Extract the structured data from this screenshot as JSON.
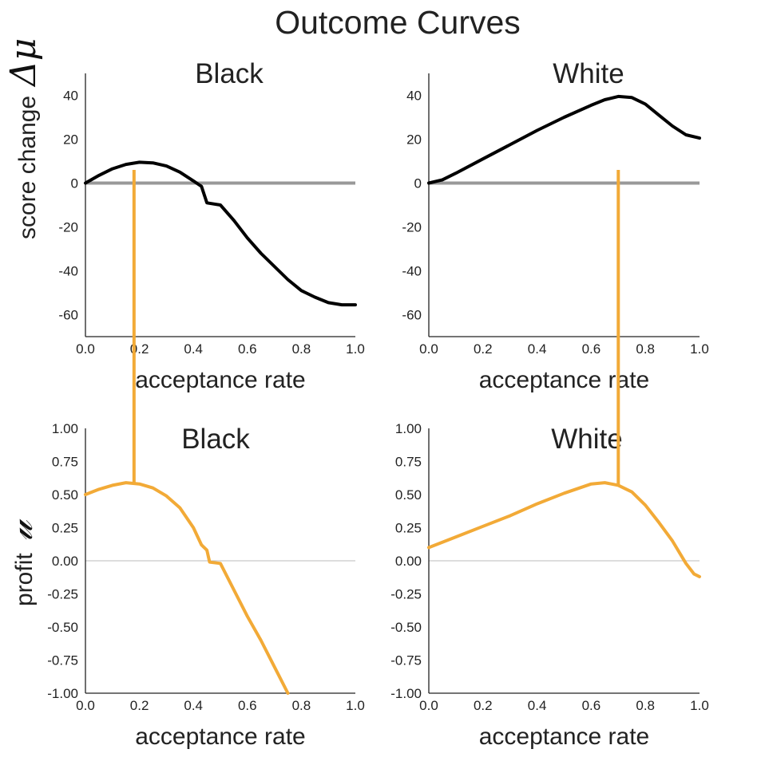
{
  "title": "Outcome Curves",
  "colors": {
    "outcome": "#000000",
    "profit": "#f2aa37",
    "zero_thick": "#999999",
    "zero_thin": "#bbbbbb",
    "axis": "#222222"
  },
  "row_labels": {
    "top": {
      "text": "score change",
      "symbol": "Δμ"
    },
    "bottom": {
      "text": "profit",
      "symbol": "𝓊"
    }
  },
  "chart_data": [
    {
      "id": "top-black",
      "type": "line",
      "title": "Black",
      "xlabel": "acceptance rate",
      "ylabel": "score change Δμ",
      "xlim": [
        0,
        1
      ],
      "ylim": [
        -70,
        50
      ],
      "xticks": [
        "0.0",
        "0.2",
        "0.4",
        "0.6",
        "0.8",
        "1.0"
      ],
      "yticks": [
        "40",
        "20",
        "0",
        "-20",
        "-40",
        "-60"
      ],
      "ytick_values": [
        40,
        20,
        0,
        -20,
        -40,
        -60
      ],
      "zero_line": "thick",
      "series": [
        {
          "name": "score change",
          "color": "#000000",
          "x": [
            0,
            0.05,
            0.1,
            0.15,
            0.2,
            0.25,
            0.3,
            0.35,
            0.4,
            0.43,
            0.45,
            0.5,
            0.55,
            0.6,
            0.65,
            0.7,
            0.75,
            0.8,
            0.85,
            0.9,
            0.95,
            1.0
          ],
          "y": [
            0,
            3.5,
            6.5,
            8.5,
            9.5,
            9.2,
            7.8,
            5,
            1,
            -1.5,
            -9,
            -10,
            -17,
            -25,
            -32,
            -38,
            -44,
            -49,
            -52,
            -54.5,
            -55.5,
            -55.5
          ]
        }
      ]
    },
    {
      "id": "top-white",
      "type": "line",
      "title": "White",
      "xlabel": "acceptance rate",
      "ylabel": "",
      "xlim": [
        0,
        1
      ],
      "ylim": [
        -70,
        50
      ],
      "xticks": [
        "0.0",
        "0.2",
        "0.4",
        "0.6",
        "0.8",
        "1.0"
      ],
      "yticks": [
        "40",
        "20",
        "0",
        "-20",
        "-40",
        "-60"
      ],
      "ytick_values": [
        40,
        20,
        0,
        -20,
        -40,
        -60
      ],
      "zero_line": "thick",
      "series": [
        {
          "name": "score change",
          "color": "#000000",
          "x": [
            0,
            0.05,
            0.1,
            0.2,
            0.3,
            0.4,
            0.5,
            0.6,
            0.65,
            0.7,
            0.75,
            0.8,
            0.85,
            0.9,
            0.95,
            1.0
          ],
          "y": [
            0,
            1.5,
            4.5,
            11,
            17.5,
            24,
            30,
            35.5,
            38,
            39.5,
            39,
            36,
            31,
            26,
            22,
            20.5
          ]
        }
      ]
    },
    {
      "id": "bottom-black",
      "type": "line",
      "title": "Black",
      "xlabel": "acceptance rate",
      "ylabel": "profit 𝓊",
      "xlim": [
        0,
        1
      ],
      "ylim": [
        -1,
        1
      ],
      "xticks": [
        "0.0",
        "0.2",
        "0.4",
        "0.6",
        "0.8",
        "1.0"
      ],
      "yticks": [
        "1.00",
        "0.75",
        "0.50",
        "0.25",
        "0.00",
        "-0.25",
        "-0.50",
        "-0.75",
        "-1.00"
      ],
      "ytick_values": [
        1,
        0.75,
        0.5,
        0.25,
        0,
        -0.25,
        -0.5,
        -0.75,
        -1
      ],
      "zero_line": "thin",
      "series": [
        {
          "name": "profit",
          "color": "#f2aa37",
          "x": [
            0,
            0.05,
            0.1,
            0.15,
            0.2,
            0.25,
            0.3,
            0.35,
            0.4,
            0.43,
            0.45,
            0.46,
            0.5,
            0.55,
            0.6,
            0.65,
            0.7,
            0.75
          ],
          "y": [
            0.5,
            0.54,
            0.57,
            0.59,
            0.58,
            0.55,
            0.49,
            0.4,
            0.25,
            0.12,
            0.08,
            -0.01,
            -0.02,
            -0.22,
            -0.42,
            -0.6,
            -0.8,
            -1.0
          ]
        }
      ]
    },
    {
      "id": "bottom-white",
      "type": "line",
      "title": "White",
      "xlabel": "acceptance rate",
      "ylabel": "",
      "xlim": [
        0,
        1
      ],
      "ylim": [
        -1,
        1
      ],
      "xticks": [
        "0.0",
        "0.2",
        "0.4",
        "0.6",
        "0.8",
        "1.0"
      ],
      "yticks": [
        "1.00",
        "0.75",
        "0.50",
        "0.25",
        "0.00",
        "-0.25",
        "-0.50",
        "-0.75",
        "-1.00"
      ],
      "ytick_values": [
        1,
        0.75,
        0.5,
        0.25,
        0,
        -0.25,
        -0.5,
        -0.75,
        -1
      ],
      "zero_line": "thin",
      "series": [
        {
          "name": "profit",
          "color": "#f2aa37",
          "x": [
            0,
            0.05,
            0.1,
            0.2,
            0.3,
            0.4,
            0.5,
            0.6,
            0.65,
            0.7,
            0.75,
            0.8,
            0.85,
            0.9,
            0.95,
            0.98,
            1.0
          ],
          "y": [
            0.1,
            0.14,
            0.18,
            0.26,
            0.34,
            0.43,
            0.51,
            0.58,
            0.59,
            0.57,
            0.52,
            0.42,
            0.29,
            0.15,
            -0.02,
            -0.1,
            -0.12
          ]
        }
      ]
    }
  ],
  "connectors": [
    {
      "from": "top-black",
      "to": "bottom-black",
      "x": 0.18,
      "top_y": 6,
      "bottom_y": 0.59
    },
    {
      "from": "top-white",
      "to": "bottom-white",
      "x": 0.7,
      "top_y": 6,
      "bottom_y": 0.57
    }
  ]
}
